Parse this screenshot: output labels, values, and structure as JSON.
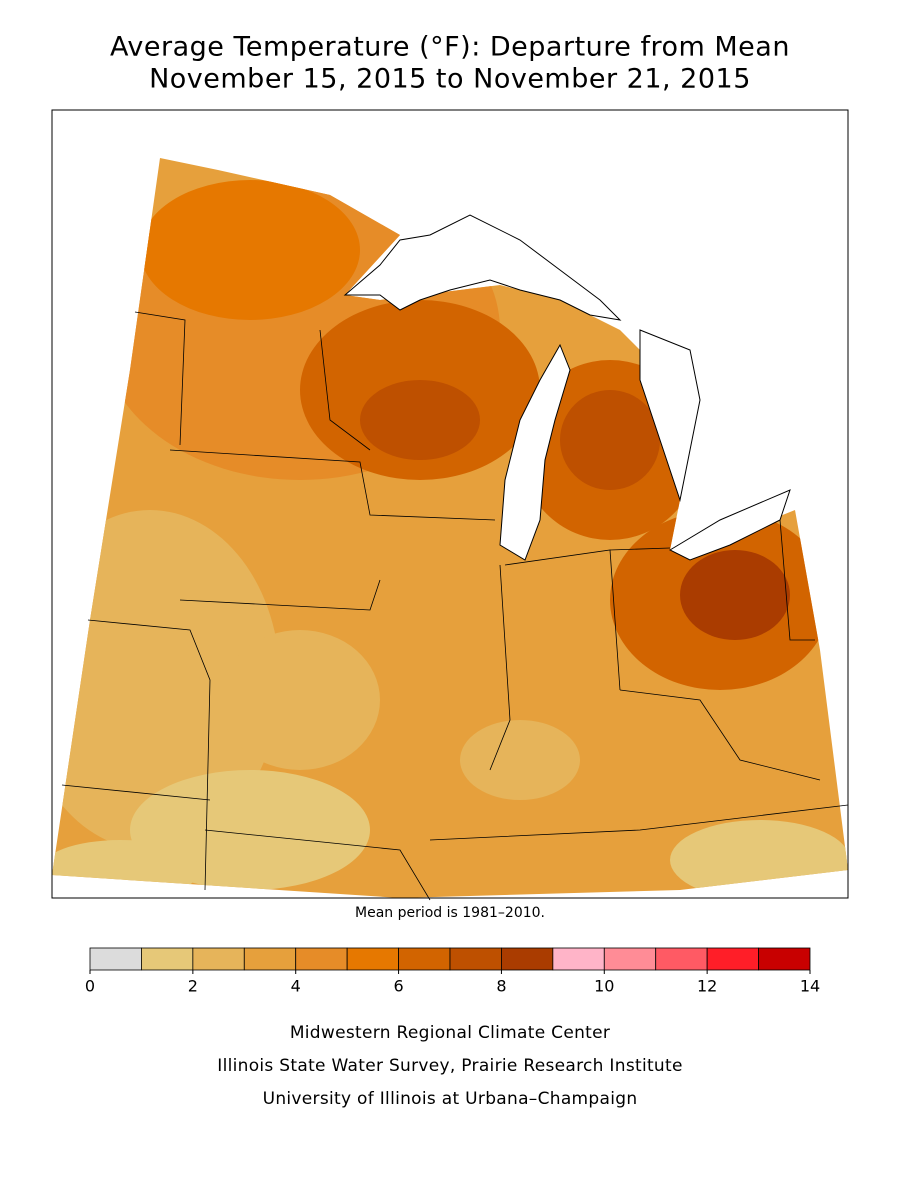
{
  "title_lines": [
    "Average Temperature (°F): Departure from Mean",
    "November 15, 2015 to November 21, 2015"
  ],
  "note": "Mean period is 1981–2010.",
  "legend": {
    "bins": [
      0,
      1,
      2,
      3,
      4,
      5,
      6,
      7,
      8,
      9,
      10,
      11,
      12,
      13,
      14
    ],
    "colors": [
      "#dcdcdc",
      "#e6c878",
      "#e6b45a",
      "#e6a03c",
      "#e68c28",
      "#e67800",
      "#d26400",
      "#be5000",
      "#aa3c00",
      "#ffb4c8",
      "#ff8c96",
      "#ff5a64",
      "#ff1e28",
      "#c80000"
    ],
    "ticks": [
      0,
      2,
      4,
      6,
      8,
      10,
      12,
      14
    ]
  },
  "footer_lines": [
    "Midwestern Regional Climate Center",
    "Illinois State Water Survey, Prairie Research Institute",
    "University of Illinois at Urbana–Champaign"
  ]
}
